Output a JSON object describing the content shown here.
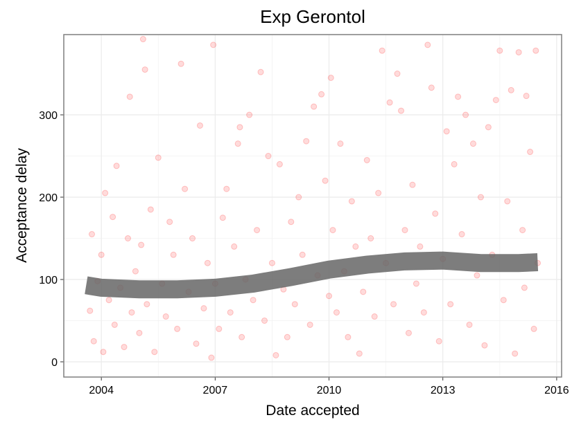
{
  "chart_data": {
    "type": "scatter",
    "title": "Exp Gerontol",
    "x_label": "Date accepted",
    "y_label": "Acceptance delay",
    "xlim": [
      2003.01,
      2016.13
    ],
    "ylim": [
      -18.5,
      397.5
    ],
    "xticks": [
      2004,
      2007,
      2010,
      2013,
      2016
    ],
    "yticks": [
      0,
      100,
      200,
      300
    ],
    "grid": true,
    "series": [
      {
        "color": "#ff0000",
        "alpha": 0.14,
        "x": [
          2003.7,
          2003.75,
          2003.8,
          2003.9,
          2004.0,
          2004.05,
          2004.1,
          2004.2,
          2004.3,
          2004.35,
          2004.4,
          2004.5,
          2004.6,
          2004.7,
          2004.75,
          2004.8,
          2004.9,
          2005.0,
          2005.05,
          2005.1,
          2005.15,
          2005.2,
          2005.3,
          2005.4,
          2005.5,
          2005.6,
          2005.7,
          2005.8,
          2005.9,
          2006.0,
          2006.1,
          2006.2,
          2006.3,
          2006.4,
          2006.5,
          2006.6,
          2006.7,
          2006.8,
          2006.9,
          2006.95,
          2007.0,
          2007.1,
          2007.2,
          2007.3,
          2007.4,
          2007.5,
          2007.6,
          2007.65,
          2007.7,
          2007.8,
          2007.9,
          2008.0,
          2008.1,
          2008.2,
          2008.3,
          2008.4,
          2008.5,
          2008.6,
          2008.7,
          2008.8,
          2008.9,
          2009.0,
          2009.1,
          2009.2,
          2009.3,
          2009.4,
          2009.5,
          2009.6,
          2009.7,
          2009.8,
          2009.9,
          2010.0,
          2010.05,
          2010.1,
          2010.2,
          2010.3,
          2010.4,
          2010.5,
          2010.6,
          2010.7,
          2010.8,
          2010.9,
          2011.0,
          2011.1,
          2011.2,
          2011.3,
          2011.4,
          2011.5,
          2011.6,
          2011.7,
          2011.8,
          2011.9,
          2012.0,
          2012.1,
          2012.2,
          2012.3,
          2012.4,
          2012.5,
          2012.6,
          2012.7,
          2012.8,
          2012.9,
          2013.0,
          2013.1,
          2013.2,
          2013.3,
          2013.4,
          2013.5,
          2013.6,
          2013.7,
          2013.8,
          2013.9,
          2014.0,
          2014.1,
          2014.2,
          2014.3,
          2014.4,
          2014.5,
          2014.6,
          2014.7,
          2014.8,
          2014.9,
          2015.0,
          2015.1,
          2015.15,
          2015.2,
          2015.3,
          2015.4,
          2015.45,
          2015.5
        ],
        "values": [
          62,
          155,
          25,
          98,
          130,
          12,
          205,
          75,
          176,
          45,
          238,
          90,
          18,
          150,
          322,
          60,
          110,
          35,
          142,
          392,
          355,
          70,
          185,
          12,
          248,
          95,
          55,
          170,
          130,
          40,
          362,
          210,
          85,
          150,
          22,
          287,
          65,
          120,
          5,
          385,
          95,
          40,
          175,
          210,
          60,
          140,
          265,
          285,
          30,
          100,
          300,
          75,
          160,
          352,
          50,
          250,
          120,
          8,
          240,
          88,
          30,
          170,
          70,
          200,
          130,
          268,
          45,
          310,
          105,
          325,
          220,
          80,
          345,
          160,
          60,
          265,
          110,
          30,
          195,
          140,
          10,
          85,
          245,
          150,
          55,
          205,
          378,
          120,
          315,
          70,
          350,
          305,
          160,
          35,
          215,
          95,
          140,
          60,
          385,
          333,
          180,
          25,
          125,
          280,
          70,
          240,
          322,
          155,
          300,
          45,
          265,
          105,
          200,
          20,
          285,
          130,
          318,
          378,
          75,
          195,
          330,
          10,
          376,
          160,
          90,
          323,
          255,
          40,
          378,
          120
        ]
      },
      {
        "type": "line",
        "color": "#666666",
        "x": [
          2003.6,
          2004,
          2005,
          2006,
          2007,
          2008,
          2009,
          2010,
          2011,
          2012,
          2013,
          2014,
          2015,
          2015.5
        ],
        "values": [
          93,
          90,
          88,
          88,
          90,
          95,
          103,
          112,
          118,
          122,
          123,
          120,
          120,
          121
        ]
      }
    ]
  }
}
